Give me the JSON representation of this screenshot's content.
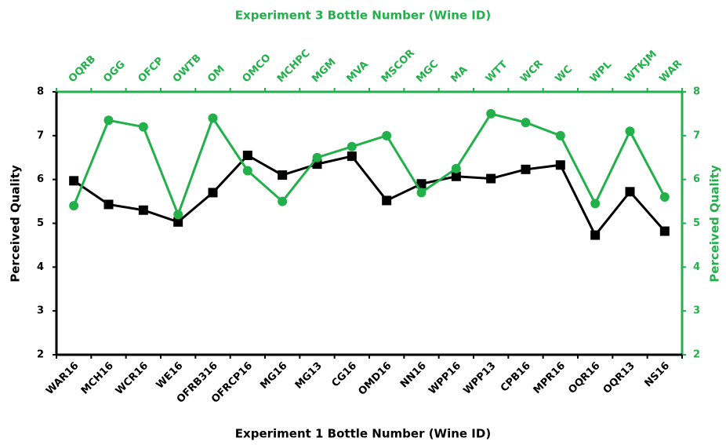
{
  "chart_data": {
    "type": "line",
    "xlabel": "Experiment 1 Bottle Number (Wine ID)",
    "x2label": "Experiment 3 Bottle Number (Wine ID)",
    "ylabel": "Perceived Quality",
    "y2label": "Perceived Quality",
    "categories": [
      "WAR16",
      "MCH16",
      "WCR16",
      "WE16",
      "OFRB316",
      "OFRCP16",
      "MG16",
      "MG13",
      "CG16",
      "OMD16",
      "NN16",
      "WPP16",
      "WPP13",
      "CPB16",
      "MPR16",
      "OQR16",
      "OQR13",
      "NS16"
    ],
    "x2_categories": [
      "OQRB",
      "OGG",
      "OFCP",
      "OWTB",
      "OM",
      "OMCO",
      "MCHPC",
      "MGM",
      "MVA",
      "MSCOR",
      "MGC",
      "MA",
      "WTT",
      "WCR",
      "WC",
      "WPL",
      "WTKJM",
      "WAR"
    ],
    "series": [
      {
        "color": "#000000",
        "marker": "square",
        "axis": "y",
        "values": [
          5.97,
          5.43,
          5.3,
          5.03,
          5.7,
          6.55,
          6.1,
          6.35,
          6.53,
          5.52,
          5.9,
          6.07,
          6.02,
          6.23,
          6.33,
          4.73,
          5.72,
          4.82
        ]
      },
      {
        "color": "#22b04b",
        "marker": "circle",
        "axis": "y2",
        "values": [
          5.4,
          7.35,
          7.2,
          5.2,
          7.4,
          6.2,
          5.5,
          6.5,
          6.75,
          7.0,
          5.7,
          6.25,
          7.5,
          7.3,
          7.0,
          5.45,
          7.1,
          5.6
        ]
      }
    ],
    "ylim": [
      2,
      8
    ],
    "yticks": [
      2,
      3,
      4,
      5,
      6,
      7,
      8
    ],
    "y2lim": [
      2,
      8
    ],
    "y2ticks": [
      2,
      3,
      4,
      5,
      6,
      7,
      8
    ],
    "y2color": "#22b04b"
  }
}
